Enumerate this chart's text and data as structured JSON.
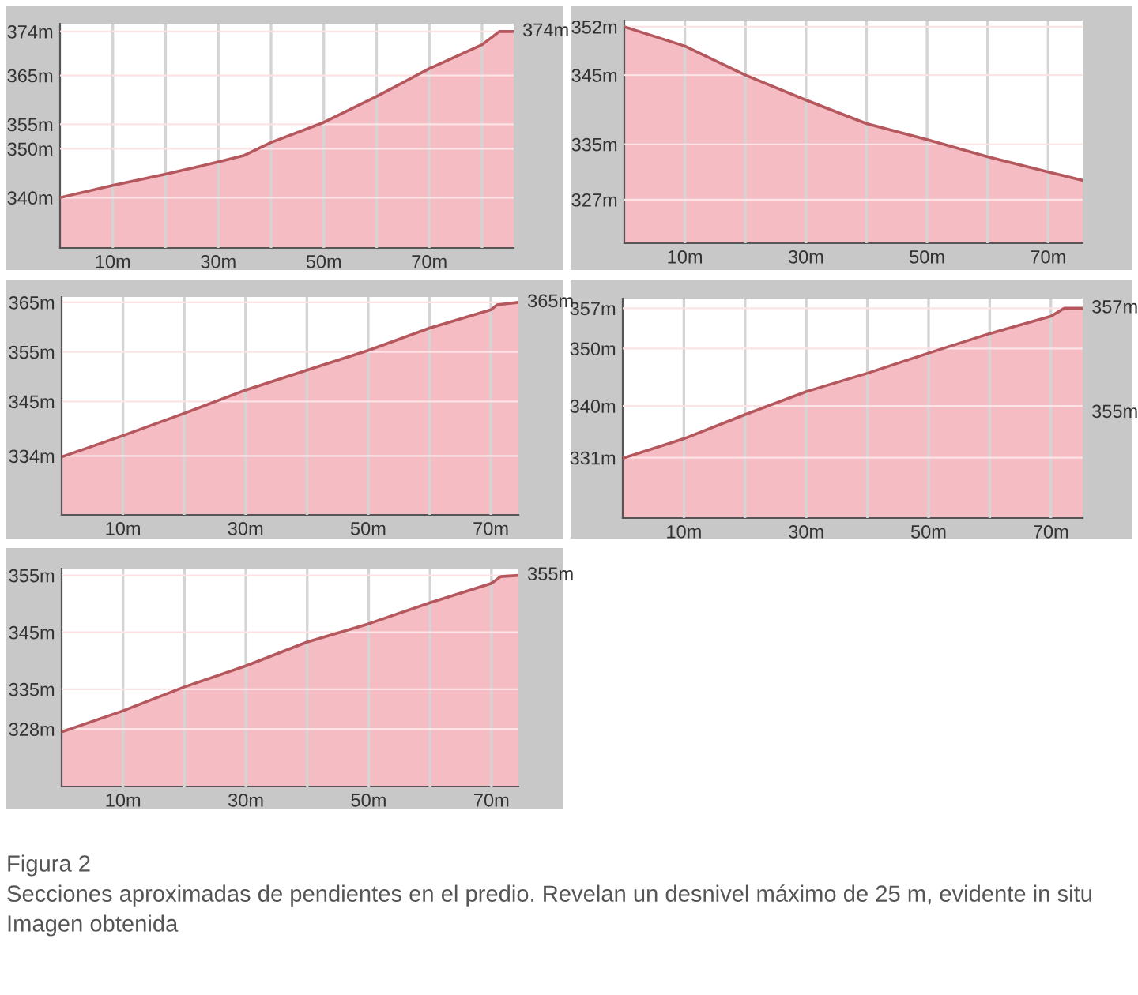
{
  "chart_data": [
    {
      "type": "area",
      "x": [
        0,
        10,
        20,
        30,
        34.8,
        40,
        50,
        60,
        70,
        80,
        83.3,
        86
      ],
      "values": [
        340,
        342.5,
        344.8,
        347.3,
        348.6,
        351.3,
        355.4,
        360.7,
        366.4,
        371.3,
        374,
        374
      ],
      "color": "#b5585e",
      "xlim": [
        0,
        86
      ],
      "ylim": [
        329.7,
        375.6
      ],
      "xticks": [
        {
          "value": 10,
          "label": "10m"
        },
        {
          "value": 20,
          "label": null
        },
        {
          "value": 30,
          "label": "30m"
        },
        {
          "value": 40,
          "label": null
        },
        {
          "value": 50,
          "label": "50m"
        },
        {
          "value": 60,
          "label": null
        },
        {
          "value": 70,
          "label": "70m"
        },
        {
          "value": 80,
          "label": null
        }
      ],
      "yticks": [
        {
          "value": 340,
          "label": "340m"
        },
        {
          "value": 350,
          "label": "350m"
        },
        {
          "value": 355,
          "label": "355m"
        },
        {
          "value": 365,
          "label": "365m"
        },
        {
          "value": 374,
          "label": "374m"
        }
      ],
      "annotations": [
        {
          "text": "374m",
          "x": 86,
          "y": 374
        }
      ],
      "grid": true
    },
    {
      "type": "area",
      "x": [
        0,
        10,
        20,
        30,
        40,
        50,
        60,
        70,
        75.7
      ],
      "values": [
        352,
        349.2,
        345,
        341.4,
        338,
        335.7,
        333.2,
        331,
        329.8
      ],
      "color": "#b5585e",
      "xlim": [
        0,
        75.7
      ],
      "ylim": [
        320.7,
        352.9
      ],
      "xticks": [
        {
          "value": 10,
          "label": "10m"
        },
        {
          "value": 20,
          "label": null
        },
        {
          "value": 30,
          "label": "30m"
        },
        {
          "value": 40,
          "label": null
        },
        {
          "value": 50,
          "label": "50m"
        },
        {
          "value": 60,
          "label": null
        },
        {
          "value": 70,
          "label": "70m"
        }
      ],
      "yticks": [
        {
          "value": 327,
          "label": "327m"
        },
        {
          "value": 335,
          "label": "335m"
        },
        {
          "value": 345,
          "label": "345m"
        },
        {
          "value": 352,
          "label": "352m"
        }
      ],
      "grid": true
    },
    {
      "type": "area",
      "x": [
        0,
        10,
        20,
        30,
        40,
        50,
        60,
        70,
        71,
        74.5
      ],
      "values": [
        333.8,
        338.1,
        342.6,
        347.3,
        351.3,
        355.3,
        359.8,
        363.5,
        364.5,
        365
      ],
      "color": "#b5585e",
      "xlim": [
        0,
        74.5
      ],
      "ylim": [
        322.1,
        366.1
      ],
      "xticks": [
        {
          "value": 10,
          "label": "10m"
        },
        {
          "value": 20,
          "label": null
        },
        {
          "value": 30,
          "label": "30m"
        },
        {
          "value": 40,
          "label": null
        },
        {
          "value": 50,
          "label": "50m"
        },
        {
          "value": 60,
          "label": null
        },
        {
          "value": 70,
          "label": "70m"
        }
      ],
      "yticks": [
        {
          "value": 334,
          "label": "334m"
        },
        {
          "value": 345,
          "label": "345m"
        },
        {
          "value": 355,
          "label": "355m"
        },
        {
          "value": 365,
          "label": "365m"
        }
      ],
      "annotations": [
        {
          "text": "365m",
          "x": 74.5,
          "y": 365
        }
      ],
      "grid": true
    },
    {
      "type": "area",
      "x": [
        0,
        10,
        20,
        30,
        40,
        50,
        60,
        70,
        72.2,
        75.2
      ],
      "values": [
        330.9,
        334.3,
        338.5,
        342.5,
        345.7,
        349.2,
        352.6,
        355.6,
        357,
        357
      ],
      "color": "#b5585e",
      "xlim": [
        0,
        75.2
      ],
      "ylim": [
        320.5,
        358.7
      ],
      "xticks": [
        {
          "value": 10,
          "label": "10m"
        },
        {
          "value": 20,
          "label": null
        },
        {
          "value": 30,
          "label": "30m"
        },
        {
          "value": 40,
          "label": null
        },
        {
          "value": 50,
          "label": "50m"
        },
        {
          "value": 60,
          "label": null
        },
        {
          "value": 70,
          "label": "70m"
        }
      ],
      "yticks": [
        {
          "value": 331,
          "label": "331m"
        },
        {
          "value": 340,
          "label": "340m"
        },
        {
          "value": 350,
          "label": "350m"
        },
        {
          "value": 357,
          "label": "357m"
        }
      ],
      "annotations": [
        {
          "text": "357m",
          "x": 75.2,
          "y": 357
        },
        {
          "text": "355m",
          "x": 75.2,
          "y": 338.8
        }
      ],
      "grid": true
    },
    {
      "type": "area",
      "x": [
        0,
        10,
        20,
        30,
        40,
        50,
        60,
        70,
        71.5,
        74.4
      ],
      "values": [
        327.5,
        331.2,
        335.4,
        339.1,
        343.3,
        346.5,
        350.2,
        353.6,
        354.8,
        355
      ],
      "color": "#b5585e",
      "xlim": [
        0,
        74.4
      ],
      "ylim": [
        317.9,
        356.2
      ],
      "xticks": [
        {
          "value": 10,
          "label": "10m"
        },
        {
          "value": 20,
          "label": null
        },
        {
          "value": 30,
          "label": "30m"
        },
        {
          "value": 40,
          "label": null
        },
        {
          "value": 50,
          "label": "50m"
        },
        {
          "value": 60,
          "label": null
        },
        {
          "value": 70,
          "label": "70m"
        }
      ],
      "yticks": [
        {
          "value": 328,
          "label": "328m"
        },
        {
          "value": 335,
          "label": "335m"
        },
        {
          "value": 345,
          "label": "345m"
        },
        {
          "value": 355,
          "label": "355m"
        }
      ],
      "grid": true,
      "annotations": [
        {
          "text": "355m",
          "x": 74.4,
          "y": 355
        },
        "Figura 2",
        "Secciones aproximadas de pendientes en el predio. Revelan un desnivel máximo de 25 m, evidente in situ",
        "Imagen obtenida"
      ]
    }
  ]
}
